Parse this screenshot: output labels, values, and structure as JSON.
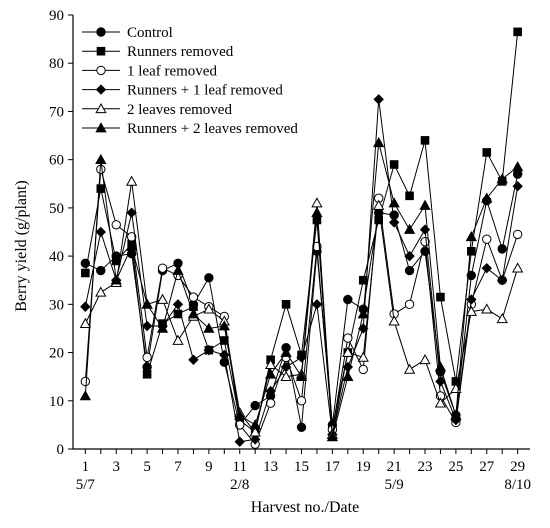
{
  "chart_data": {
    "type": "line",
    "xlabel": "Harvest no./Date",
    "ylabel": "Berry yield (g/plant)",
    "ylim": [
      0,
      90
    ],
    "y_ticks": [
      0,
      10,
      20,
      30,
      40,
      50,
      60,
      70,
      80,
      90
    ],
    "x": [
      1,
      2,
      3,
      4,
      5,
      6,
      7,
      8,
      9,
      10,
      11,
      12,
      13,
      14,
      15,
      16,
      17,
      18,
      19,
      20,
      21,
      22,
      23,
      24,
      25,
      26,
      27,
      28,
      29
    ],
    "x_ticks": [
      1,
      3,
      5,
      7,
      9,
      11,
      13,
      15,
      17,
      19,
      21,
      23,
      25,
      27,
      29
    ],
    "date_labels": [
      {
        "x": 1,
        "text": "5/7"
      },
      {
        "x": 11,
        "text": "2/8"
      },
      {
        "x": 21,
        "text": "5/9"
      },
      {
        "x": 29,
        "text": "8/10"
      }
    ],
    "grid": false,
    "legend_position": "top-left",
    "series": [
      {
        "name": "Control",
        "marker": "circle-filled",
        "values": [
          38.5,
          37,
          40,
          40.5,
          17,
          37,
          38.5,
          30,
          35.5,
          18,
          5,
          9,
          11,
          21,
          4.5,
          41,
          5,
          31,
          29,
          49,
          48.5,
          37,
          41,
          16,
          7,
          36,
          51.5,
          41.5,
          57
        ]
      },
      {
        "name": "Runners removed",
        "marker": "square-filled",
        "values": [
          36.5,
          54,
          39,
          42.5,
          15.5,
          26,
          28,
          29.5,
          20.5,
          22.5,
          6,
          3.5,
          18.5,
          30,
          19.5,
          47.5,
          4.5,
          20,
          35,
          47.5,
          59,
          52.5,
          64,
          31.5,
          14,
          41,
          61.5,
          55.5,
          86.5
        ]
      },
      {
        "name": "1 leaf removed",
        "marker": "circle-open",
        "values": [
          14,
          58,
          46.5,
          44,
          19,
          37.5,
          36,
          31.5,
          29.5,
          27.5,
          5,
          1,
          9.5,
          19,
          10,
          42,
          4,
          23,
          16.5,
          52,
          28,
          30,
          43,
          11,
          5.5,
          30,
          43.5,
          35,
          44.5
        ]
      },
      {
        "name": "Runners + 1 leaf removed",
        "marker": "diamond-filled",
        "values": [
          29.5,
          45,
          35,
          49,
          25.5,
          25.5,
          30,
          18.5,
          20.5,
          19.5,
          1.5,
          2,
          12,
          17,
          19,
          30,
          3,
          17,
          25,
          72.5,
          47,
          40,
          45.5,
          14,
          6,
          31,
          37.5,
          35,
          54.5
        ]
      },
      {
        "name": "2 leaves removed",
        "marker": "triangle-open",
        "values": [
          26,
          32.5,
          34.5,
          55.5,
          30,
          31,
          22.5,
          27.5,
          29,
          26.5,
          7.5,
          3.5,
          17.5,
          15,
          15.5,
          51,
          3,
          20,
          19,
          50.5,
          26.5,
          16.5,
          18.5,
          9.5,
          12.5,
          28.5,
          29,
          27,
          37.5
        ]
      },
      {
        "name": "Runners + 2 leaves removed",
        "marker": "triangle-filled",
        "values": [
          11,
          60,
          35,
          42,
          30,
          25,
          37,
          28,
          25,
          25.5,
          7,
          5,
          15.5,
          20,
          15,
          49,
          2.5,
          15,
          28,
          63.5,
          51,
          45.5,
          50.5,
          17,
          7,
          44,
          52,
          56,
          58.5
        ]
      }
    ]
  }
}
